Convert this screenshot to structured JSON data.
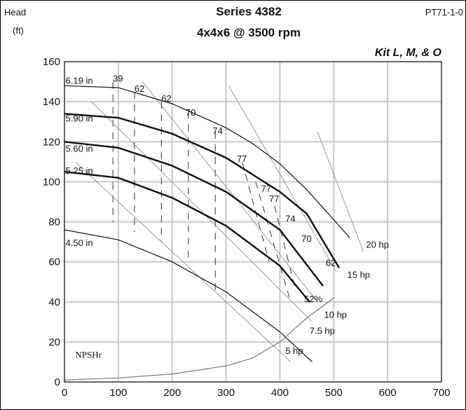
{
  "header": {
    "left": "Head",
    "units": "(ft)",
    "series": "Series 4382",
    "code": "PT71-1-0",
    "model": "4x4x6 @ 3500 rpm",
    "kit": "Kit L, M, & O"
  },
  "chart_data": {
    "type": "line",
    "title": "4x4x6 @ 3500 rpm",
    "xlabel": "",
    "ylabel": "Head (ft)",
    "xlim": [
      0,
      700
    ],
    "ylim": [
      0,
      160
    ],
    "x_ticks": [
      "0",
      "100",
      "200",
      "300",
      "400",
      "500",
      "600",
      "700"
    ],
    "y_ticks": [
      "0",
      "20",
      "40",
      "60",
      "80",
      "100",
      "120",
      "140",
      "160"
    ],
    "grid": true,
    "impeller_curves": [
      {
        "label": "6.19 in",
        "label_at": [
          2,
          149
        ],
        "points": [
          [
            0,
            148
          ],
          [
            100,
            147
          ],
          [
            200,
            139
          ],
          [
            300,
            127
          ],
          [
            350,
            119
          ],
          [
            400,
            109
          ],
          [
            450,
            96
          ],
          [
            500,
            81
          ],
          [
            530,
            72
          ]
        ],
        "bold": false
      },
      {
        "label": "5.90 in",
        "label_at": [
          2,
          130
        ],
        "points": [
          [
            0,
            134
          ],
          [
            100,
            132
          ],
          [
            200,
            124
          ],
          [
            300,
            112
          ],
          [
            400,
            95
          ],
          [
            450,
            84
          ],
          [
            510,
            57
          ]
        ],
        "bold": true
      },
      {
        "label": "5.60 in",
        "label_at": [
          2,
          115
        ],
        "points": [
          [
            0,
            120
          ],
          [
            100,
            117
          ],
          [
            200,
            108
          ],
          [
            300,
            95
          ],
          [
            400,
            76
          ],
          [
            480,
            48
          ]
        ],
        "bold": true
      },
      {
        "label": "5.25 in",
        "label_at": [
          2,
          104
        ],
        "points": [
          [
            0,
            105
          ],
          [
            100,
            102
          ],
          [
            200,
            92
          ],
          [
            300,
            78
          ],
          [
            400,
            58
          ],
          [
            455,
            40
          ]
        ],
        "bold": true
      },
      {
        "label": "4.50 in",
        "label_at": [
          2,
          68
        ],
        "points": [
          [
            0,
            76
          ],
          [
            100,
            71
          ],
          [
            200,
            60
          ],
          [
            300,
            45
          ],
          [
            400,
            25
          ],
          [
            460,
            10
          ]
        ],
        "bold": false
      }
    ],
    "efficiency_labels": [
      {
        "label": "39",
        "at": [
          90,
          150
        ]
      },
      {
        "label": "62",
        "at": [
          130,
          145
        ]
      },
      {
        "label": "62",
        "at": [
          180,
          140
        ]
      },
      {
        "label": "70",
        "at": [
          225,
          133
        ]
      },
      {
        "label": "74",
        "at": [
          275,
          124
        ]
      },
      {
        "label": "77",
        "at": [
          320,
          110
        ]
      },
      {
        "label": "77",
        "at": [
          365,
          95
        ]
      },
      {
        "label": "77",
        "at": [
          380,
          90
        ]
      },
      {
        "label": "74",
        "at": [
          410,
          80
        ]
      },
      {
        "label": "70",
        "at": [
          440,
          70
        ]
      },
      {
        "label": "62",
        "at": [
          485,
          58
        ]
      },
      {
        "label": "52%",
        "at": [
          445,
          40
        ]
      }
    ],
    "horsepower_lines": [
      {
        "label": "20 hp",
        "label_at": [
          560,
          67
        ],
        "points": [
          [
            470,
            125
          ],
          [
            555,
            65
          ]
        ]
      },
      {
        "label": "15 hp",
        "label_at": [
          525,
          52
        ],
        "points": [
          [
            305,
            148
          ],
          [
            505,
            55
          ]
        ]
      },
      {
        "label": "10 hp",
        "label_at": [
          482,
          32
        ],
        "points": [
          [
            145,
            150
          ],
          [
            470,
            40
          ]
        ]
      },
      {
        "label": "7.5 hp",
        "label_at": [
          455,
          24
        ],
        "points": [
          [
            50,
            140
          ],
          [
            460,
            30
          ]
        ]
      },
      {
        "label": "5 hp",
        "label_at": [
          410,
          14
        ],
        "points": [
          [
            20,
            110
          ],
          [
            420,
            10
          ]
        ]
      }
    ],
    "npsh": {
      "label": "NPSHr",
      "label_at": [
        20,
        12
      ],
      "points": [
        [
          0,
          1
        ],
        [
          100,
          2
        ],
        [
          200,
          4
        ],
        [
          300,
          8
        ],
        [
          350,
          12
        ],
        [
          400,
          20
        ],
        [
          450,
          32
        ],
        [
          500,
          42
        ]
      ]
    }
  }
}
